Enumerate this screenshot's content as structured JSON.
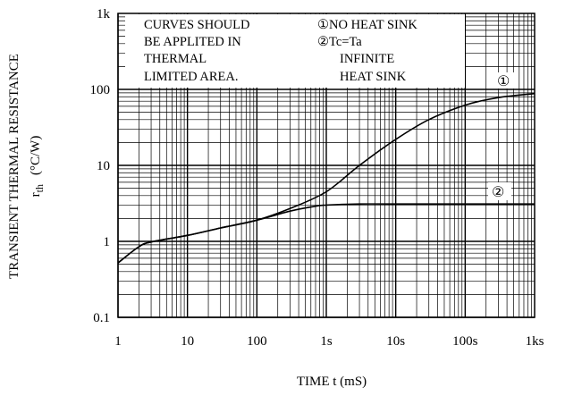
{
  "chart_data": {
    "type": "line",
    "title": "",
    "xlabel": "TIME  t  (mS)",
    "ylabel": {
      "line1": "TRANSIENT THERMAL RESISTANCE",
      "line2_main": "r",
      "line2_sub": "th",
      "line2_unit": "(°C/W)"
    },
    "x_scale": "log",
    "y_scale": "log",
    "xlim": [
      1,
      1000000
    ],
    "ylim": [
      0.1,
      1000
    ],
    "x_ticks": [
      {
        "value": 1,
        "label": "1"
      },
      {
        "value": 10,
        "label": "10"
      },
      {
        "value": 100,
        "label": "100"
      },
      {
        "value": 1000,
        "label": "1s"
      },
      {
        "value": 10000,
        "label": "10s"
      },
      {
        "value": 100000,
        "label": "100s"
      },
      {
        "value": 1000000,
        "label": "1ks"
      }
    ],
    "y_ticks": [
      {
        "value": 0.1,
        "label": "0.1"
      },
      {
        "value": 1,
        "label": "1"
      },
      {
        "value": 10,
        "label": "10"
      },
      {
        "value": 100,
        "label": "100"
      },
      {
        "value": 1000,
        "label": "1k"
      }
    ],
    "grid": true,
    "series": [
      {
        "name": "①",
        "points": [
          [
            1,
            0.52
          ],
          [
            2,
            0.85
          ],
          [
            3,
            0.98
          ],
          [
            10,
            1.2
          ],
          [
            30,
            1.5
          ],
          [
            100,
            1.9
          ],
          [
            300,
            2.7
          ],
          [
            1000,
            4.5
          ],
          [
            3000,
            10
          ],
          [
            10000,
            22
          ],
          [
            30000,
            40
          ],
          [
            100000,
            62
          ],
          [
            300000,
            78
          ],
          [
            1000000,
            88
          ]
        ]
      },
      {
        "name": "②",
        "points": [
          [
            1,
            0.52
          ],
          [
            2,
            0.85
          ],
          [
            3,
            0.98
          ],
          [
            10,
            1.2
          ],
          [
            30,
            1.5
          ],
          [
            100,
            1.9
          ],
          [
            300,
            2.5
          ],
          [
            700,
            2.9
          ],
          [
            1000,
            3.0
          ],
          [
            3000,
            3.1
          ],
          [
            10000,
            3.1
          ],
          [
            1000000,
            3.1
          ]
        ]
      }
    ],
    "annotations": {
      "note_lines": [
        "CURVES SHOULD",
        "BE APPLITED IN",
        "THERMAL",
        "LIMITED AREA."
      ],
      "legend_lines": [
        "①NO HEAT SINK",
        "②Tc=Ta",
        "INFINITE",
        "HEAT SINK"
      ],
      "curve_markers": [
        "①",
        "②"
      ]
    }
  }
}
